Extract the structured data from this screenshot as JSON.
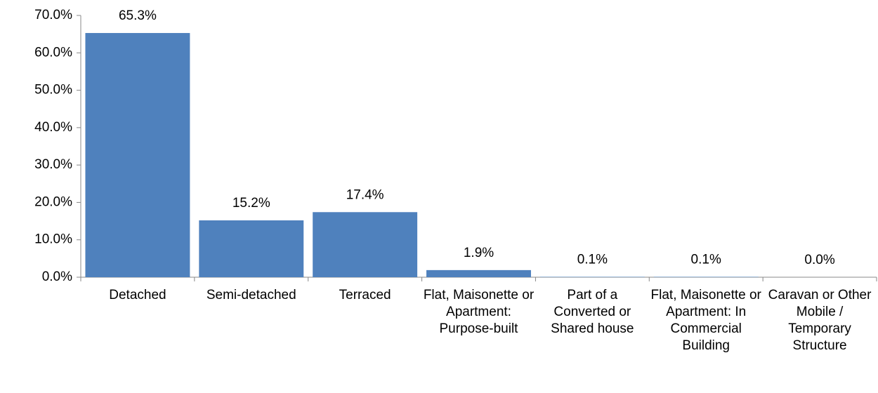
{
  "chart_data": {
    "type": "bar",
    "categories": [
      "Detached",
      "Semi-detached",
      "Terraced",
      "Flat, Maisonette or Apartment: Purpose-built",
      "Part of a Converted or Shared house",
      "Flat, Maisonette or Apartment: In Commercial Building",
      "Caravan or Other Mobile / Temporary Structure"
    ],
    "values": [
      65.3,
      15.2,
      17.4,
      1.9,
      0.1,
      0.1,
      0.0
    ],
    "value_labels": [
      "65.3%",
      "15.2%",
      "17.4%",
      "1.9%",
      "0.1%",
      "0.1%",
      "0.0%"
    ],
    "color": "#4f81bd",
    "ylim": [
      0,
      70
    ],
    "yticks": [
      {
        "value": 0,
        "label": "0.0%"
      },
      {
        "value": 10,
        "label": "10.0%"
      },
      {
        "value": 20,
        "label": "20.0%"
      },
      {
        "value": 30,
        "label": "30.0%"
      },
      {
        "value": 40,
        "label": "40.0%"
      },
      {
        "value": 50,
        "label": "50.0%"
      },
      {
        "value": 60,
        "label": "60.0%"
      },
      {
        "value": 70,
        "label": "70.0%"
      }
    ],
    "grid": false
  }
}
